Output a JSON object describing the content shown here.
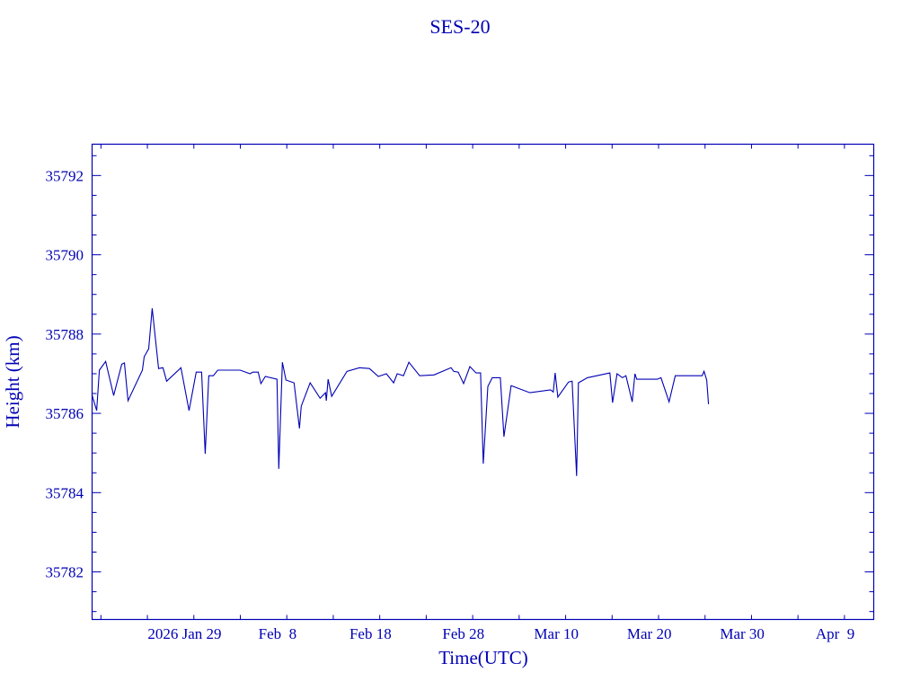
{
  "chart_data": {
    "type": "line",
    "title": "SES-20",
    "xlabel": "Time(UTC)",
    "ylabel": "Height (km)",
    "x_units": "day of year 2026 (Jan 1 = 1)",
    "xlim": [
      19.05,
      103.15
    ],
    "ylim": [
      35780.8,
      35792.79
    ],
    "grid": false,
    "x_ticks": [
      {
        "value": 29,
        "label": "2026 Jan 29"
      },
      {
        "value": 39,
        "label": "Feb  8"
      },
      {
        "value": 49,
        "label": "Feb 18"
      },
      {
        "value": 59,
        "label": "Feb 28"
      },
      {
        "value": 69,
        "label": "Mar 10"
      },
      {
        "value": 79,
        "label": "Mar 20"
      },
      {
        "value": 89,
        "label": "Mar 30"
      },
      {
        "value": 99,
        "label": "Apr  9"
      }
    ],
    "x_minor_step": 5,
    "y_ticks": [
      {
        "value": 35782,
        "label": "35782"
      },
      {
        "value": 35784,
        "label": "35784"
      },
      {
        "value": 35786,
        "label": "35786"
      },
      {
        "value": 35788,
        "label": "35788"
      },
      {
        "value": 35790,
        "label": "35790"
      },
      {
        "value": 35792,
        "label": "35792"
      }
    ],
    "y_minor_step": 0.5,
    "colors": {
      "line": "#0000b4",
      "axes": "#0000b4"
    },
    "series": [
      {
        "name": "SES-20",
        "x": [
          19.06,
          19.54,
          19.83,
          20.51,
          21.37,
          22.24,
          22.53,
          22.92,
          24.46,
          24.66,
          25.14,
          25.52,
          26.2,
          26.68,
          27.07,
          28.61,
          29.48,
          30.25,
          30.83,
          31.22,
          31.61,
          32.09,
          32.57,
          34.98,
          36.05,
          36.34,
          36.92,
          37.21,
          37.69,
          38.94,
          39.14,
          39.52,
          39.91,
          40.78,
          41.36,
          41.55,
          42.51,
          43.58,
          44.16,
          44.25,
          44.44,
          44.83,
          46.47,
          47.82,
          48.89,
          49.85,
          50.72,
          51.49,
          51.88,
          52.55,
          53.13,
          54.29,
          55.84,
          57.67,
          57.96,
          58.44,
          59.02,
          59.7,
          60.37,
          60.85,
          61.14,
          61.63,
          62.11,
          62.98,
          63.36,
          64.14,
          66.16,
          68.38,
          68.67,
          68.87,
          69.16,
          70.31,
          70.7,
          71.18,
          71.38,
          72.34,
          74.76,
          75.05,
          75.53,
          76.11,
          76.49,
          77.17,
          77.46,
          77.65,
          79.87,
          80.26,
          81.13,
          81.8,
          84.7,
          84.89,
          85.18,
          85.37
        ],
        "y": [
          35786.45,
          35786.07,
          35787.09,
          35787.31,
          35786.45,
          35787.24,
          35787.27,
          35786.32,
          35787.09,
          35787.43,
          35787.63,
          35788.65,
          35787.13,
          35787.15,
          35786.81,
          35787.15,
          35786.07,
          35787.04,
          35787.04,
          35784.98,
          35786.95,
          35786.95,
          35787.09,
          35787.09,
          35787.0,
          35787.04,
          35787.04,
          35786.75,
          35786.93,
          35786.86,
          35784.6,
          35787.29,
          35786.84,
          35786.77,
          35785.62,
          35786.18,
          35786.77,
          35786.38,
          35786.52,
          35786.32,
          35786.86,
          35786.43,
          35787.06,
          35787.15,
          35787.13,
          35786.93,
          35787.0,
          35786.77,
          35787.0,
          35786.95,
          35787.29,
          35786.95,
          35786.97,
          35787.15,
          35787.06,
          35787.04,
          35786.75,
          35787.18,
          35787.02,
          35787.02,
          35784.73,
          35786.68,
          35786.9,
          35786.9,
          35785.41,
          35786.7,
          35786.52,
          35786.59,
          35786.54,
          35787.02,
          35786.41,
          35786.79,
          35786.81,
          35784.42,
          35786.77,
          35786.9,
          35787.02,
          35786.27,
          35787.0,
          35786.9,
          35786.95,
          35786.29,
          35787.0,
          35786.86,
          35786.86,
          35786.9,
          35786.29,
          35786.95,
          35786.95,
          35787.06,
          35786.84,
          35786.23
        ]
      }
    ]
  }
}
